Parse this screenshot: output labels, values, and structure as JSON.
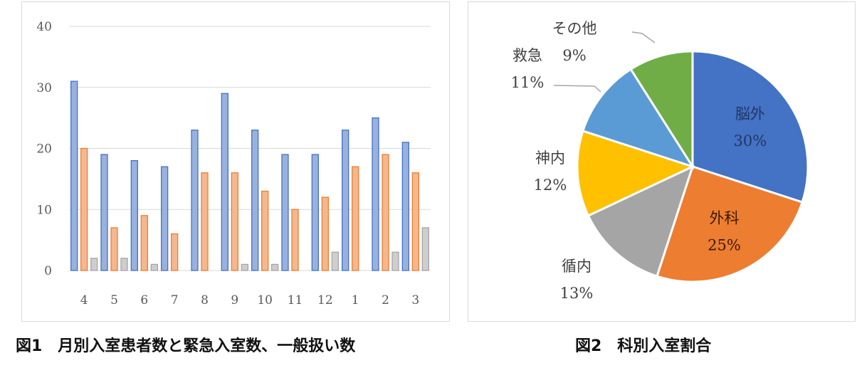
{
  "figures": [
    {
      "caption": "図1　月別入室患者数と緊急入室数、一般扱い数"
    },
    {
      "caption": "図2　科別入室割合"
    }
  ],
  "chart_data": [
    {
      "type": "bar",
      "title": "",
      "xlabel": "",
      "ylabel": "",
      "categories": [
        "4",
        "5",
        "6",
        "7",
        "8",
        "9",
        "10",
        "11",
        "12",
        "1",
        "2",
        "3"
      ],
      "ylim": [
        0,
        40
      ],
      "yticks": [
        0,
        10,
        20,
        30,
        40
      ],
      "grid": true,
      "series": [
        {
          "values": [
            31,
            19,
            18,
            17,
            23,
            29,
            23,
            19,
            19,
            23,
            25,
            21
          ],
          "color": "#4472c4"
        },
        {
          "values": [
            20,
            7,
            9,
            6,
            16,
            16,
            13,
            10,
            12,
            17,
            19,
            16
          ],
          "color": "#ed7d31"
        },
        {
          "values": [
            2,
            2,
            1,
            0,
            0,
            1,
            1,
            0,
            3,
            0,
            3,
            7
          ],
          "color": "#a5a5a5"
        }
      ]
    },
    {
      "type": "pie",
      "title": "",
      "slices": [
        {
          "label": "脳外",
          "pct_label": "30%",
          "value": 30,
          "color": "#4472c4"
        },
        {
          "label": "外科",
          "pct_label": "25%",
          "value": 25,
          "color": "#ed7d31"
        },
        {
          "label": "循内",
          "pct_label": "13%",
          "value": 13,
          "color": "#a5a5a5"
        },
        {
          "label": "神内",
          "pct_label": "12%",
          "value": 12,
          "color": "#ffc000"
        },
        {
          "label": "救急",
          "pct_label": "11%",
          "value": 11,
          "color": "#5b9bd5"
        },
        {
          "label": "その他",
          "pct_label": "9%",
          "value": 9,
          "color": "#70ad47"
        }
      ]
    }
  ]
}
